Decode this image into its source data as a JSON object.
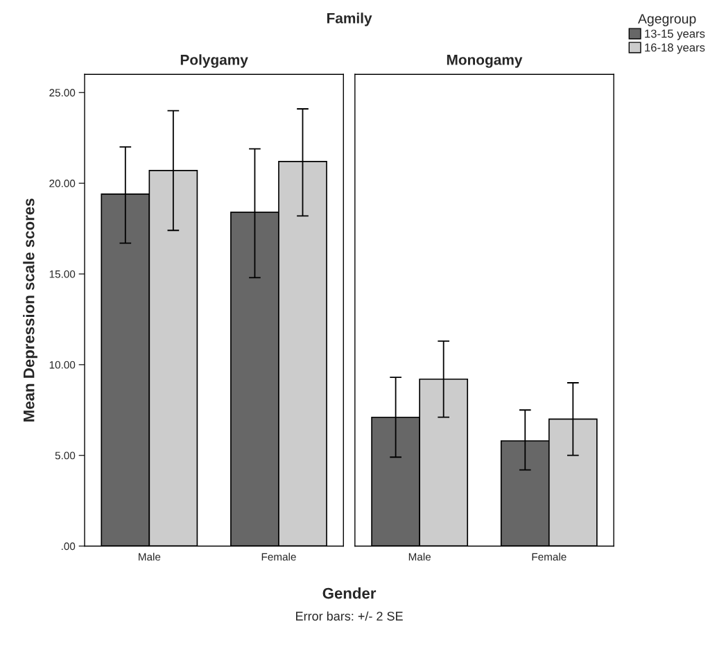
{
  "chart_data": [
    {
      "type": "bar",
      "title": "Polygamy",
      "xlabel": "Gender",
      "ylabel": "Mean Depression scale scores",
      "categories": [
        "Male",
        "Female"
      ],
      "series": [
        {
          "name": "13-15 years",
          "color": "#676767",
          "values": [
            19.4,
            18.4
          ],
          "errors": [
            [
              16.7,
              22.0
            ],
            [
              14.8,
              21.9
            ]
          ]
        },
        {
          "name": "16-18 years",
          "color": "#cccccc",
          "values": [
            20.7,
            21.2
          ],
          "errors": [
            [
              17.4,
              24.0
            ],
            [
              18.2,
              24.1
            ]
          ]
        }
      ],
      "ylim": [
        0,
        26
      ],
      "yticks": [
        {
          "value": 0,
          "label": ".00"
        },
        {
          "value": 5,
          "label": "5.00"
        },
        {
          "value": 10,
          "label": "10.00"
        },
        {
          "value": 15,
          "label": "15.00"
        },
        {
          "value": 20,
          "label": "20.00"
        },
        {
          "value": 25,
          "label": "25.00"
        }
      ],
      "grid": false,
      "legend": "top right",
      "legend_title": "Agegroup",
      "annotations": [
        "Family",
        "Error bars: +/- 2 SE"
      ]
    },
    {
      "type": "bar",
      "title": "Monogamy",
      "categories": [
        "Male",
        "Female"
      ],
      "series": [
        {
          "color": "#676767",
          "values": [
            7.1,
            5.8
          ],
          "errors": [
            [
              4.9,
              9.3
            ],
            [
              4.2,
              7.5
            ]
          ]
        },
        {
          "color": "#cccccc",
          "values": [
            9.2,
            7.0
          ],
          "errors": [
            [
              7.1,
              11.3
            ],
            [
              5.0,
              9.0
            ]
          ]
        }
      ],
      "ylim": [
        0,
        26
      ],
      "tick_labels": "x",
      "grid": false
    }
  ]
}
